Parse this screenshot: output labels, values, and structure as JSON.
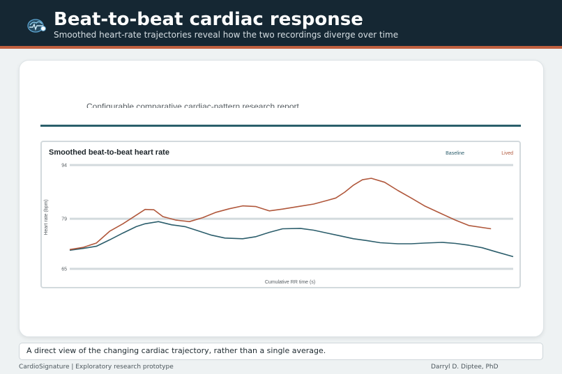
{
  "header": {
    "title": "Beat-to-beat cardiac response",
    "subtitle": "Smoothed heart-rate trajectories reveal how the two recordings diverge over time",
    "logo_icon": "heart-brain-icon",
    "colors": {
      "bar": "#152733",
      "accent": "#c0603f"
    }
  },
  "report": {
    "caption": "Configurable comparative cardiac-pattern research report",
    "rule_color": "#2a5f6b"
  },
  "chart_data": {
    "type": "line",
    "title": "Smoothed beat-to-beat heart rate",
    "xlabel": "Cumulative RR time (s)",
    "ylabel": "Heart rate (bpm)",
    "ylim": [
      65,
      94
    ],
    "yticks": [
      65,
      79,
      94
    ],
    "xlim": [
      0,
      1
    ],
    "grid": true,
    "legend_position": "top-right",
    "series": [
      {
        "name": "Baseline",
        "color": "#2b5d6b",
        "x": [
          0,
          0.03,
          0.06,
          0.09,
          0.12,
          0.15,
          0.17,
          0.2,
          0.23,
          0.26,
          0.29,
          0.32,
          0.35,
          0.39,
          0.42,
          0.45,
          0.48,
          0.52,
          0.55,
          0.58,
          0.61,
          0.64,
          0.67,
          0.7,
          0.74,
          0.77,
          0.8,
          0.84,
          0.87,
          0.9,
          0.93,
          0.96,
          1.0
        ],
        "y": [
          70.2,
          70.7,
          71.3,
          73.1,
          75.0,
          76.8,
          77.6,
          78.2,
          77.3,
          76.8,
          75.6,
          74.4,
          73.6,
          73.4,
          74.0,
          75.2,
          76.2,
          76.3,
          75.8,
          75.0,
          74.2,
          73.4,
          72.9,
          72.3,
          72.0,
          72.0,
          72.2,
          72.4,
          72.1,
          71.6,
          70.9,
          69.8,
          68.4
        ]
      },
      {
        "name": "Lived",
        "color": "#b0573b",
        "x": [
          0,
          0.03,
          0.06,
          0.09,
          0.12,
          0.15,
          0.17,
          0.19,
          0.21,
          0.24,
          0.27,
          0.3,
          0.33,
          0.36,
          0.39,
          0.42,
          0.45,
          0.48,
          0.52,
          0.55,
          0.58,
          0.6,
          0.62,
          0.64,
          0.66,
          0.68,
          0.71,
          0.74,
          0.77,
          0.8,
          0.84,
          0.87,
          0.9,
          0.95
        ],
        "y": [
          70.4,
          71.0,
          72.2,
          75.5,
          77.6,
          80.0,
          81.6,
          81.5,
          79.6,
          78.6,
          78.2,
          79.3,
          80.8,
          81.8,
          82.6,
          82.4,
          81.2,
          81.7,
          82.5,
          83.1,
          84.1,
          84.8,
          86.4,
          88.4,
          89.9,
          90.3,
          89.2,
          86.9,
          84.8,
          82.6,
          80.3,
          78.6,
          77.1,
          76.2
        ]
      }
    ]
  },
  "footer": {
    "note": "A direct view of the changing cardiac trajectory, rather than a single average.",
    "credit_left": "CardioSignature | Exploratory research prototype",
    "credit_right": "Darryl D. Diptee, PhD"
  }
}
